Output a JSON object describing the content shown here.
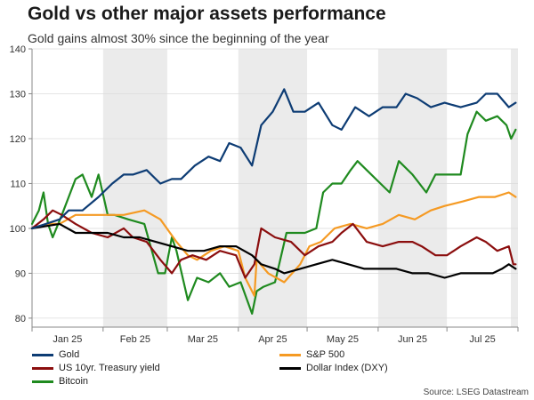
{
  "header": {
    "title": "Gold vs other major assets performance",
    "subtitle": "Gold gains almost 30% since the beginning of the year"
  },
  "source": "Source: LSEG Datastream",
  "colors": {
    "gold": "#0d3c74",
    "sp500": "#f59a23",
    "us10y": "#8b0e0e",
    "dxy": "#000000",
    "bitcoin": "#1f8a1f",
    "shade": "#ebebeb",
    "axis": "#888888"
  },
  "chart_data": {
    "type": "line",
    "title": "Gold vs other major assets performance",
    "subtitle": "Gold gains almost 30% since the beginning of the year",
    "xlabel": "",
    "ylabel": "",
    "ylim": [
      78,
      140
    ],
    "yticks": [
      80,
      90,
      100,
      110,
      120,
      130,
      140
    ],
    "xlim": [
      "2025-01-01",
      "2025-08-01"
    ],
    "xticks": [
      "Jan 25",
      "Feb 25",
      "Mar 25",
      "Apr 25",
      "May 25",
      "Jun 25",
      "Jul 25"
    ],
    "shaded_months": [
      "Feb 25",
      "Apr 25",
      "Jun 25"
    ],
    "grid": true,
    "legend": "bottom",
    "series": [
      {
        "name": "Gold",
        "color_key": "gold",
        "points": [
          [
            "2025-01-01",
            100
          ],
          [
            "2025-01-07",
            101
          ],
          [
            "2025-01-13",
            102
          ],
          [
            "2025-01-17",
            104
          ],
          [
            "2025-01-23",
            104
          ],
          [
            "2025-01-30",
            107
          ],
          [
            "2025-02-05",
            110
          ],
          [
            "2025-02-10",
            112
          ],
          [
            "2025-02-14",
            112
          ],
          [
            "2025-02-20",
            113
          ],
          [
            "2025-02-26",
            110
          ],
          [
            "2025-03-03",
            111
          ],
          [
            "2025-03-07",
            111
          ],
          [
            "2025-03-13",
            114
          ],
          [
            "2025-03-19",
            116
          ],
          [
            "2025-03-24",
            115
          ],
          [
            "2025-03-28",
            119
          ],
          [
            "2025-04-02",
            118
          ],
          [
            "2025-04-07",
            114
          ],
          [
            "2025-04-11",
            123
          ],
          [
            "2025-04-16",
            126
          ],
          [
            "2025-04-21",
            131
          ],
          [
            "2025-04-25",
            126
          ],
          [
            "2025-04-30",
            126
          ],
          [
            "2025-05-06",
            128
          ],
          [
            "2025-05-12",
            123
          ],
          [
            "2025-05-16",
            122
          ],
          [
            "2025-05-22",
            127
          ],
          [
            "2025-05-28",
            125
          ],
          [
            "2025-06-03",
            127
          ],
          [
            "2025-06-09",
            127
          ],
          [
            "2025-06-13",
            130
          ],
          [
            "2025-06-18",
            129
          ],
          [
            "2025-06-24",
            127
          ],
          [
            "2025-06-30",
            128
          ],
          [
            "2025-07-07",
            127
          ],
          [
            "2025-07-14",
            128
          ],
          [
            "2025-07-18",
            130
          ],
          [
            "2025-07-23",
            130
          ],
          [
            "2025-07-28",
            127
          ],
          [
            "2025-07-31",
            128
          ]
        ]
      },
      {
        "name": "S&P 500",
        "color_key": "sp500",
        "points": [
          [
            "2025-01-01",
            100
          ],
          [
            "2025-01-08",
            101
          ],
          [
            "2025-01-13",
            101
          ],
          [
            "2025-01-20",
            103
          ],
          [
            "2025-01-27",
            103
          ],
          [
            "2025-02-03",
            103
          ],
          [
            "2025-02-10",
            103
          ],
          [
            "2025-02-19",
            104
          ],
          [
            "2025-02-26",
            102
          ],
          [
            "2025-03-05",
            97
          ],
          [
            "2025-03-10",
            94
          ],
          [
            "2025-03-14",
            93
          ],
          [
            "2025-03-20",
            95
          ],
          [
            "2025-03-26",
            96
          ],
          [
            "2025-04-01",
            95
          ],
          [
            "2025-04-04",
            89
          ],
          [
            "2025-04-08",
            85
          ],
          [
            "2025-04-09",
            93
          ],
          [
            "2025-04-14",
            90
          ],
          [
            "2025-04-21",
            88
          ],
          [
            "2025-04-28",
            92
          ],
          [
            "2025-05-02",
            96
          ],
          [
            "2025-05-07",
            97
          ],
          [
            "2025-05-13",
            100
          ],
          [
            "2025-05-20",
            101
          ],
          [
            "2025-05-27",
            100
          ],
          [
            "2025-06-03",
            101
          ],
          [
            "2025-06-10",
            103
          ],
          [
            "2025-06-17",
            102
          ],
          [
            "2025-06-24",
            104
          ],
          [
            "2025-06-30",
            105
          ],
          [
            "2025-07-08",
            106
          ],
          [
            "2025-07-15",
            107
          ],
          [
            "2025-07-22",
            107
          ],
          [
            "2025-07-28",
            108
          ],
          [
            "2025-07-31",
            107
          ]
        ]
      },
      {
        "name": "US 10yr. Treasury yield",
        "color_key": "us10y",
        "points": [
          [
            "2025-01-01",
            100
          ],
          [
            "2025-01-06",
            102
          ],
          [
            "2025-01-10",
            104
          ],
          [
            "2025-01-14",
            103
          ],
          [
            "2025-01-20",
            101
          ],
          [
            "2025-01-27",
            99
          ],
          [
            "2025-02-03",
            98
          ],
          [
            "2025-02-10",
            100
          ],
          [
            "2025-02-14",
            98
          ],
          [
            "2025-02-20",
            97
          ],
          [
            "2025-02-26",
            93
          ],
          [
            "2025-03-03",
            90
          ],
          [
            "2025-03-07",
            93
          ],
          [
            "2025-03-12",
            94
          ],
          [
            "2025-03-18",
            93
          ],
          [
            "2025-03-24",
            95
          ],
          [
            "2025-03-31",
            94
          ],
          [
            "2025-04-04",
            89
          ],
          [
            "2025-04-08",
            92
          ],
          [
            "2025-04-11",
            100
          ],
          [
            "2025-04-17",
            98
          ],
          [
            "2025-04-24",
            97
          ],
          [
            "2025-04-30",
            94
          ],
          [
            "2025-05-06",
            96
          ],
          [
            "2025-05-12",
            97
          ],
          [
            "2025-05-16",
            99
          ],
          [
            "2025-05-21",
            101
          ],
          [
            "2025-05-27",
            97
          ],
          [
            "2025-06-03",
            96
          ],
          [
            "2025-06-10",
            97
          ],
          [
            "2025-06-16",
            97
          ],
          [
            "2025-06-20",
            96
          ],
          [
            "2025-06-26",
            94
          ],
          [
            "2025-07-01",
            94
          ],
          [
            "2025-07-07",
            96
          ],
          [
            "2025-07-14",
            98
          ],
          [
            "2025-07-18",
            97
          ],
          [
            "2025-07-23",
            95
          ],
          [
            "2025-07-28",
            96
          ],
          [
            "2025-07-30",
            92
          ],
          [
            "2025-07-31",
            92
          ]
        ]
      },
      {
        "name": "Dollar Index (DXY)",
        "color_key": "dxy",
        "points": [
          [
            "2025-01-01",
            100
          ],
          [
            "2025-01-13",
            101
          ],
          [
            "2025-01-20",
            99
          ],
          [
            "2025-01-27",
            99
          ],
          [
            "2025-02-03",
            99
          ],
          [
            "2025-02-10",
            98
          ],
          [
            "2025-02-17",
            98
          ],
          [
            "2025-02-24",
            97
          ],
          [
            "2025-03-03",
            96
          ],
          [
            "2025-03-10",
            95
          ],
          [
            "2025-03-17",
            95
          ],
          [
            "2025-03-24",
            96
          ],
          [
            "2025-03-31",
            96
          ],
          [
            "2025-04-07",
            94
          ],
          [
            "2025-04-11",
            92
          ],
          [
            "2025-04-17",
            91
          ],
          [
            "2025-04-21",
            90
          ],
          [
            "2025-04-28",
            91
          ],
          [
            "2025-05-05",
            92
          ],
          [
            "2025-05-12",
            93
          ],
          [
            "2025-05-19",
            92
          ],
          [
            "2025-05-26",
            91
          ],
          [
            "2025-06-02",
            91
          ],
          [
            "2025-06-09",
            91
          ],
          [
            "2025-06-16",
            90
          ],
          [
            "2025-06-23",
            90
          ],
          [
            "2025-06-30",
            89
          ],
          [
            "2025-07-07",
            90
          ],
          [
            "2025-07-14",
            90
          ],
          [
            "2025-07-21",
            90
          ],
          [
            "2025-07-25",
            91
          ],
          [
            "2025-07-28",
            92
          ],
          [
            "2025-07-31",
            91
          ]
        ]
      },
      {
        "name": "Bitcoin",
        "color_key": "bitcoin",
        "points": [
          [
            "2025-01-01",
            101
          ],
          [
            "2025-01-04",
            104
          ],
          [
            "2025-01-06",
            108
          ],
          [
            "2025-01-08",
            101
          ],
          [
            "2025-01-10",
            98
          ],
          [
            "2025-01-14",
            103
          ],
          [
            "2025-01-17",
            107
          ],
          [
            "2025-01-20",
            111
          ],
          [
            "2025-01-23",
            112
          ],
          [
            "2025-01-27",
            107
          ],
          [
            "2025-01-30",
            112
          ],
          [
            "2025-02-03",
            103
          ],
          [
            "2025-02-06",
            103
          ],
          [
            "2025-02-12",
            102
          ],
          [
            "2025-02-19",
            101
          ],
          [
            "2025-02-25",
            90
          ],
          [
            "2025-02-28",
            90
          ],
          [
            "2025-03-03",
            98
          ],
          [
            "2025-03-05",
            95
          ],
          [
            "2025-03-10",
            84
          ],
          [
            "2025-03-14",
            89
          ],
          [
            "2025-03-19",
            88
          ],
          [
            "2025-03-24",
            90
          ],
          [
            "2025-03-28",
            87
          ],
          [
            "2025-04-02",
            88
          ],
          [
            "2025-04-07",
            81
          ],
          [
            "2025-04-09",
            86
          ],
          [
            "2025-04-12",
            87
          ],
          [
            "2025-04-17",
            88
          ],
          [
            "2025-04-22",
            99
          ],
          [
            "2025-04-25",
            99
          ],
          [
            "2025-04-30",
            99
          ],
          [
            "2025-05-05",
            100
          ],
          [
            "2025-05-08",
            108
          ],
          [
            "2025-05-12",
            110
          ],
          [
            "2025-05-16",
            110
          ],
          [
            "2025-05-20",
            113
          ],
          [
            "2025-05-23",
            115
          ],
          [
            "2025-05-27",
            113
          ],
          [
            "2025-06-02",
            110
          ],
          [
            "2025-06-06",
            108
          ],
          [
            "2025-06-10",
            115
          ],
          [
            "2025-06-16",
            112
          ],
          [
            "2025-06-22",
            108
          ],
          [
            "2025-06-26",
            112
          ],
          [
            "2025-07-01",
            112
          ],
          [
            "2025-07-07",
            112
          ],
          [
            "2025-07-10",
            121
          ],
          [
            "2025-07-14",
            126
          ],
          [
            "2025-07-18",
            124
          ],
          [
            "2025-07-23",
            125
          ],
          [
            "2025-07-27",
            123
          ],
          [
            "2025-07-29",
            120
          ],
          [
            "2025-07-31",
            122
          ]
        ]
      }
    ]
  }
}
